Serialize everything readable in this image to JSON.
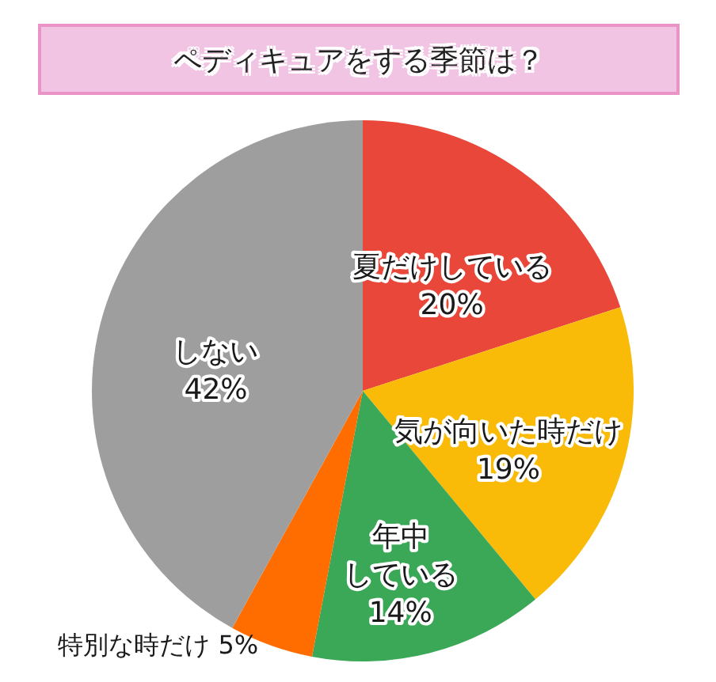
{
  "chart_data": {
    "type": "pie",
    "title": "ペディキュアをする季節は？",
    "categories": [
      "夏だけしている",
      "気が向いた時だけ",
      "年中している",
      "特別な時だけ",
      "しない"
    ],
    "values": [
      20,
      19,
      14,
      5,
      42
    ],
    "colors": [
      "#e8473a",
      "#f9bb08",
      "#3aa856",
      "#ff6d00",
      "#9e9e9e"
    ],
    "value_labels": [
      "20%",
      "19%",
      "14%",
      "5%",
      "42%"
    ]
  }
}
